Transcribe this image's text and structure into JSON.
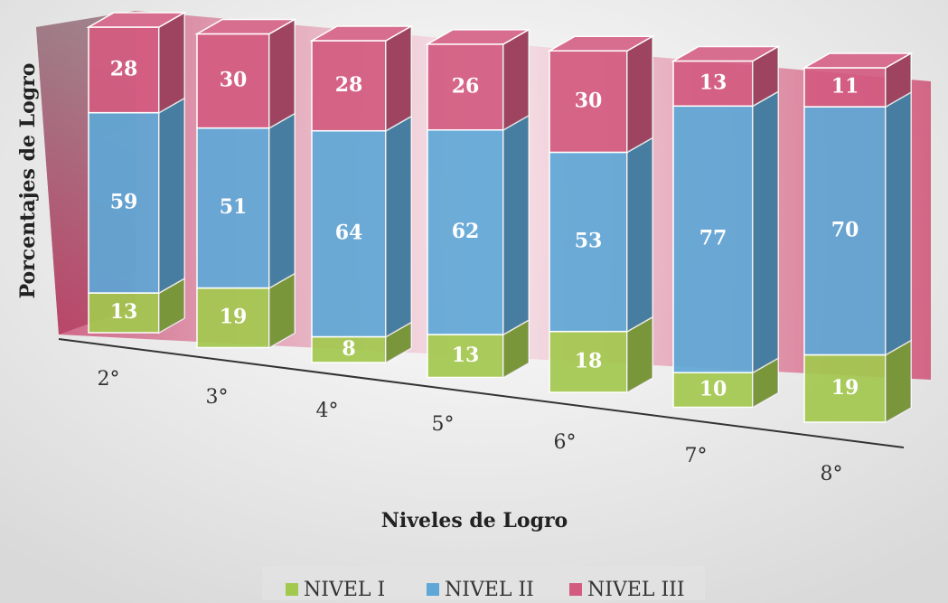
{
  "chart_data": {
    "type": "bar3d_stacked",
    "x_label": "Niveles de Logro",
    "y_label": "Porcentajes de  Logro",
    "categories": [
      "2°",
      "3°",
      "4°",
      "5°",
      "6°",
      "7°",
      "8°"
    ],
    "ylim": [
      0,
      100
    ],
    "series": [
      {
        "name": "NIVEL I",
        "color": "#a3c84e",
        "values": [
          13,
          19,
          8,
          13,
          18,
          10,
          19
        ]
      },
      {
        "name": "NIVEL II",
        "color": "#5fa7d6",
        "values": [
          59,
          51,
          64,
          62,
          53,
          77,
          70
        ]
      },
      {
        "name": "NIVEL III",
        "color": "#d35b80",
        "values": [
          28,
          30,
          28,
          26,
          30,
          13,
          11
        ]
      }
    ]
  }
}
